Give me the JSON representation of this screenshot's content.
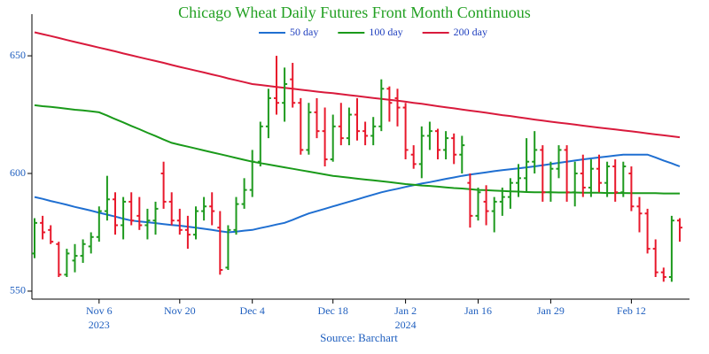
{
  "chart_data": {
    "type": "ohlc",
    "title": "Chicago Wheat Daily Futures Front Month Continuous",
    "source": "Source: Barchart",
    "increasing_color": "#1e9a1e",
    "decreasing_color": "#e8192c",
    "categories": [
      null,
      null,
      null,
      null,
      null,
      null,
      null,
      null,
      "Nov 6",
      null,
      null,
      null,
      null,
      null,
      null,
      null,
      null,
      null,
      "Nov 20",
      null,
      null,
      null,
      null,
      null,
      null,
      null,
      null,
      "Dec 4",
      null,
      null,
      null,
      null,
      null,
      null,
      null,
      null,
      null,
      "Dec 18",
      null,
      null,
      null,
      null,
      null,
      null,
      null,
      null,
      "Jan 2",
      null,
      null,
      null,
      null,
      null,
      null,
      null,
      null,
      "Jan 16",
      null,
      null,
      null,
      null,
      null,
      null,
      null,
      null,
      "Jan 29",
      null,
      null,
      null,
      null,
      null,
      null,
      null,
      null,
      null,
      "Feb 12",
      null,
      null,
      null,
      null,
      null,
      null
    ],
    "category_years": [
      null,
      null,
      null,
      null,
      null,
      null,
      null,
      null,
      "2023",
      null,
      null,
      null,
      null,
      null,
      null,
      null,
      null,
      null,
      null,
      null,
      null,
      null,
      null,
      null,
      null,
      null,
      null,
      null,
      null,
      null,
      null,
      null,
      null,
      null,
      null,
      null,
      null,
      null,
      null,
      null,
      null,
      null,
      null,
      null,
      null,
      null,
      "2024",
      null,
      null,
      null,
      null,
      null,
      null,
      null,
      null,
      null,
      null,
      null,
      null,
      null,
      null,
      null,
      null,
      null,
      null,
      null,
      null,
      null,
      null,
      null,
      null,
      null,
      null,
      null,
      null,
      null,
      null,
      null,
      null,
      null,
      null
    ],
    "open": [
      566,
      579,
      576,
      570,
      557,
      563,
      565,
      569,
      573,
      584,
      589,
      578,
      588,
      582,
      578,
      580,
      600,
      588,
      580,
      576,
      574,
      584,
      586,
      577,
      560,
      576,
      587,
      593,
      605,
      620,
      632,
      630,
      640,
      630,
      610,
      626,
      618,
      606,
      620,
      615,
      625,
      618,
      616,
      620,
      636,
      632,
      628,
      608,
      604,
      616,
      618,
      610,
      615,
      608,
      596,
      582,
      588,
      584,
      588,
      590,
      596,
      598,
      605,
      610,
      592,
      602,
      610,
      592,
      600,
      594,
      602,
      596,
      603,
      592,
      600,
      586,
      583,
      568,
      558,
      556,
      580
    ],
    "high": [
      581,
      582,
      578,
      571,
      568,
      570,
      572,
      575,
      586,
      599,
      592,
      590,
      592,
      590,
      585,
      588,
      605,
      592,
      585,
      582,
      586,
      590,
      592,
      584,
      578,
      590,
      598,
      610,
      622,
      636,
      650,
      645,
      647,
      632,
      630,
      632,
      628,
      625,
      630,
      628,
      632,
      622,
      624,
      640,
      637,
      636,
      630,
      612,
      620,
      622,
      619,
      618,
      617,
      616,
      600,
      594,
      595,
      590,
      594,
      598,
      604,
      615,
      618,
      612,
      605,
      612,
      612,
      605,
      608,
      606,
      608,
      605,
      606,
      605,
      603,
      590,
      585,
      572,
      560,
      582,
      581
    ],
    "low": [
      564,
      572,
      570,
      556,
      556,
      558,
      562,
      566,
      571,
      580,
      574,
      572,
      578,
      576,
      572,
      574,
      585,
      578,
      574,
      568,
      572,
      580,
      578,
      557,
      559,
      574,
      585,
      590,
      603,
      615,
      625,
      622,
      628,
      608,
      608,
      615,
      603,
      605,
      612,
      612,
      614,
      612,
      612,
      618,
      622,
      620,
      606,
      602,
      598,
      610,
      606,
      606,
      604,
      600,
      577,
      580,
      578,
      575,
      582,
      585,
      590,
      592,
      600,
      588,
      588,
      598,
      588,
      586,
      590,
      590,
      592,
      590,
      588,
      590,
      584,
      575,
      566,
      556,
      554,
      554,
      571
    ],
    "close": [
      579,
      575,
      571,
      557,
      566,
      565,
      570,
      573,
      584,
      589,
      578,
      588,
      580,
      578,
      580,
      585,
      588,
      580,
      576,
      574,
      584,
      586,
      584,
      559,
      576,
      587,
      593,
      605,
      620,
      632,
      630,
      638,
      630,
      610,
      626,
      618,
      606,
      620,
      615,
      625,
      618,
      616,
      620,
      636,
      630,
      628,
      610,
      604,
      616,
      618,
      610,
      615,
      608,
      612,
      582,
      592,
      584,
      588,
      590,
      596,
      598,
      605,
      610,
      592,
      602,
      610,
      592,
      600,
      594,
      602,
      596,
      603,
      592,
      603,
      586,
      583,
      568,
      558,
      556,
      580,
      577
    ],
    "series": [
      {
        "name": "50 day",
        "color": "#1f6fd1",
        "values": [
          590,
          589.2,
          588.3,
          587.5,
          586.7,
          585.8,
          585,
          584.2,
          583.3,
          582.5,
          581.7,
          580.8,
          580,
          579.6,
          579.3,
          578.9,
          578.5,
          578.1,
          577.8,
          577.4,
          577,
          576.5,
          576,
          575.5,
          575,
          575.3,
          575.7,
          576,
          576.8,
          577.5,
          578.3,
          579,
          580.3,
          581.7,
          583,
          584,
          585,
          586,
          587,
          588,
          589,
          590,
          591,
          592,
          592.8,
          593.5,
          594.3,
          595,
          595.7,
          596.3,
          597,
          597.7,
          598.3,
          599,
          599.5,
          600,
          600.5,
          601,
          601.4,
          601.8,
          602.2,
          602.6,
          603,
          603.5,
          604,
          604.5,
          605,
          605.5,
          606,
          606.4,
          606.8,
          607.2,
          607.6,
          608,
          608,
          608,
          608,
          606.8,
          605.5,
          604.3,
          603
        ]
      },
      {
        "name": "100 day",
        "color": "#1a9a1a",
        "values": [
          629,
          628.6,
          628.3,
          627.9,
          627.5,
          627.1,
          626.8,
          626.4,
          626,
          624.6,
          623.1,
          621.7,
          620.2,
          618.8,
          617.3,
          615.9,
          614.4,
          613,
          612.2,
          611.4,
          610.6,
          609.8,
          609,
          608.2,
          607.4,
          606.6,
          605.8,
          605,
          604.4,
          603.8,
          603.2,
          602.6,
          602,
          601.4,
          600.8,
          600.2,
          599.6,
          599,
          598.6,
          598.2,
          597.8,
          597.4,
          597.1,
          596.7,
          596.3,
          595.9,
          595.5,
          595.2,
          594.9,
          594.7,
          594.4,
          594.1,
          593.8,
          593.6,
          593.3,
          593,
          592.9,
          592.7,
          592.6,
          592.4,
          592.3,
          592.1,
          592,
          592,
          592,
          591.9,
          591.9,
          591.9,
          591.8,
          591.8,
          591.8,
          591.7,
          591.7,
          591.7,
          591.6,
          591.6,
          591.6,
          591.6,
          591.5,
          591.5,
          591.5
        ]
      },
      {
        "name": "200 day",
        "color": "#d91a3c",
        "values": [
          660,
          659.2,
          658.4,
          657.6,
          656.7,
          655.9,
          655.1,
          654.3,
          653.5,
          652.7,
          651.9,
          651,
          650.2,
          649.4,
          648.6,
          647.8,
          647,
          646.1,
          645.3,
          644.5,
          643.7,
          642.9,
          642.1,
          641.3,
          640.4,
          639.6,
          638.8,
          638,
          637.6,
          637.2,
          636.8,
          636.4,
          636,
          635.6,
          635.2,
          634.8,
          634.4,
          634.1,
          633.7,
          633.3,
          632.9,
          632.5,
          632.1,
          631.7,
          631.3,
          630.9,
          630.5,
          630,
          629.6,
          629.1,
          628.6,
          628.1,
          627.7,
          627.2,
          626.7,
          626.3,
          625.8,
          625.3,
          624.8,
          624.4,
          623.9,
          623.4,
          622.9,
          622.5,
          622,
          621.6,
          621.2,
          620.8,
          620.3,
          619.9,
          619.5,
          619.1,
          618.7,
          618.3,
          617.9,
          617.5,
          617,
          616.6,
          616.2,
          615.8,
          615.4
        ]
      }
    ],
    "ylim": [
      546.6,
      667.7
    ],
    "yticks": [
      550,
      600,
      650
    ]
  }
}
